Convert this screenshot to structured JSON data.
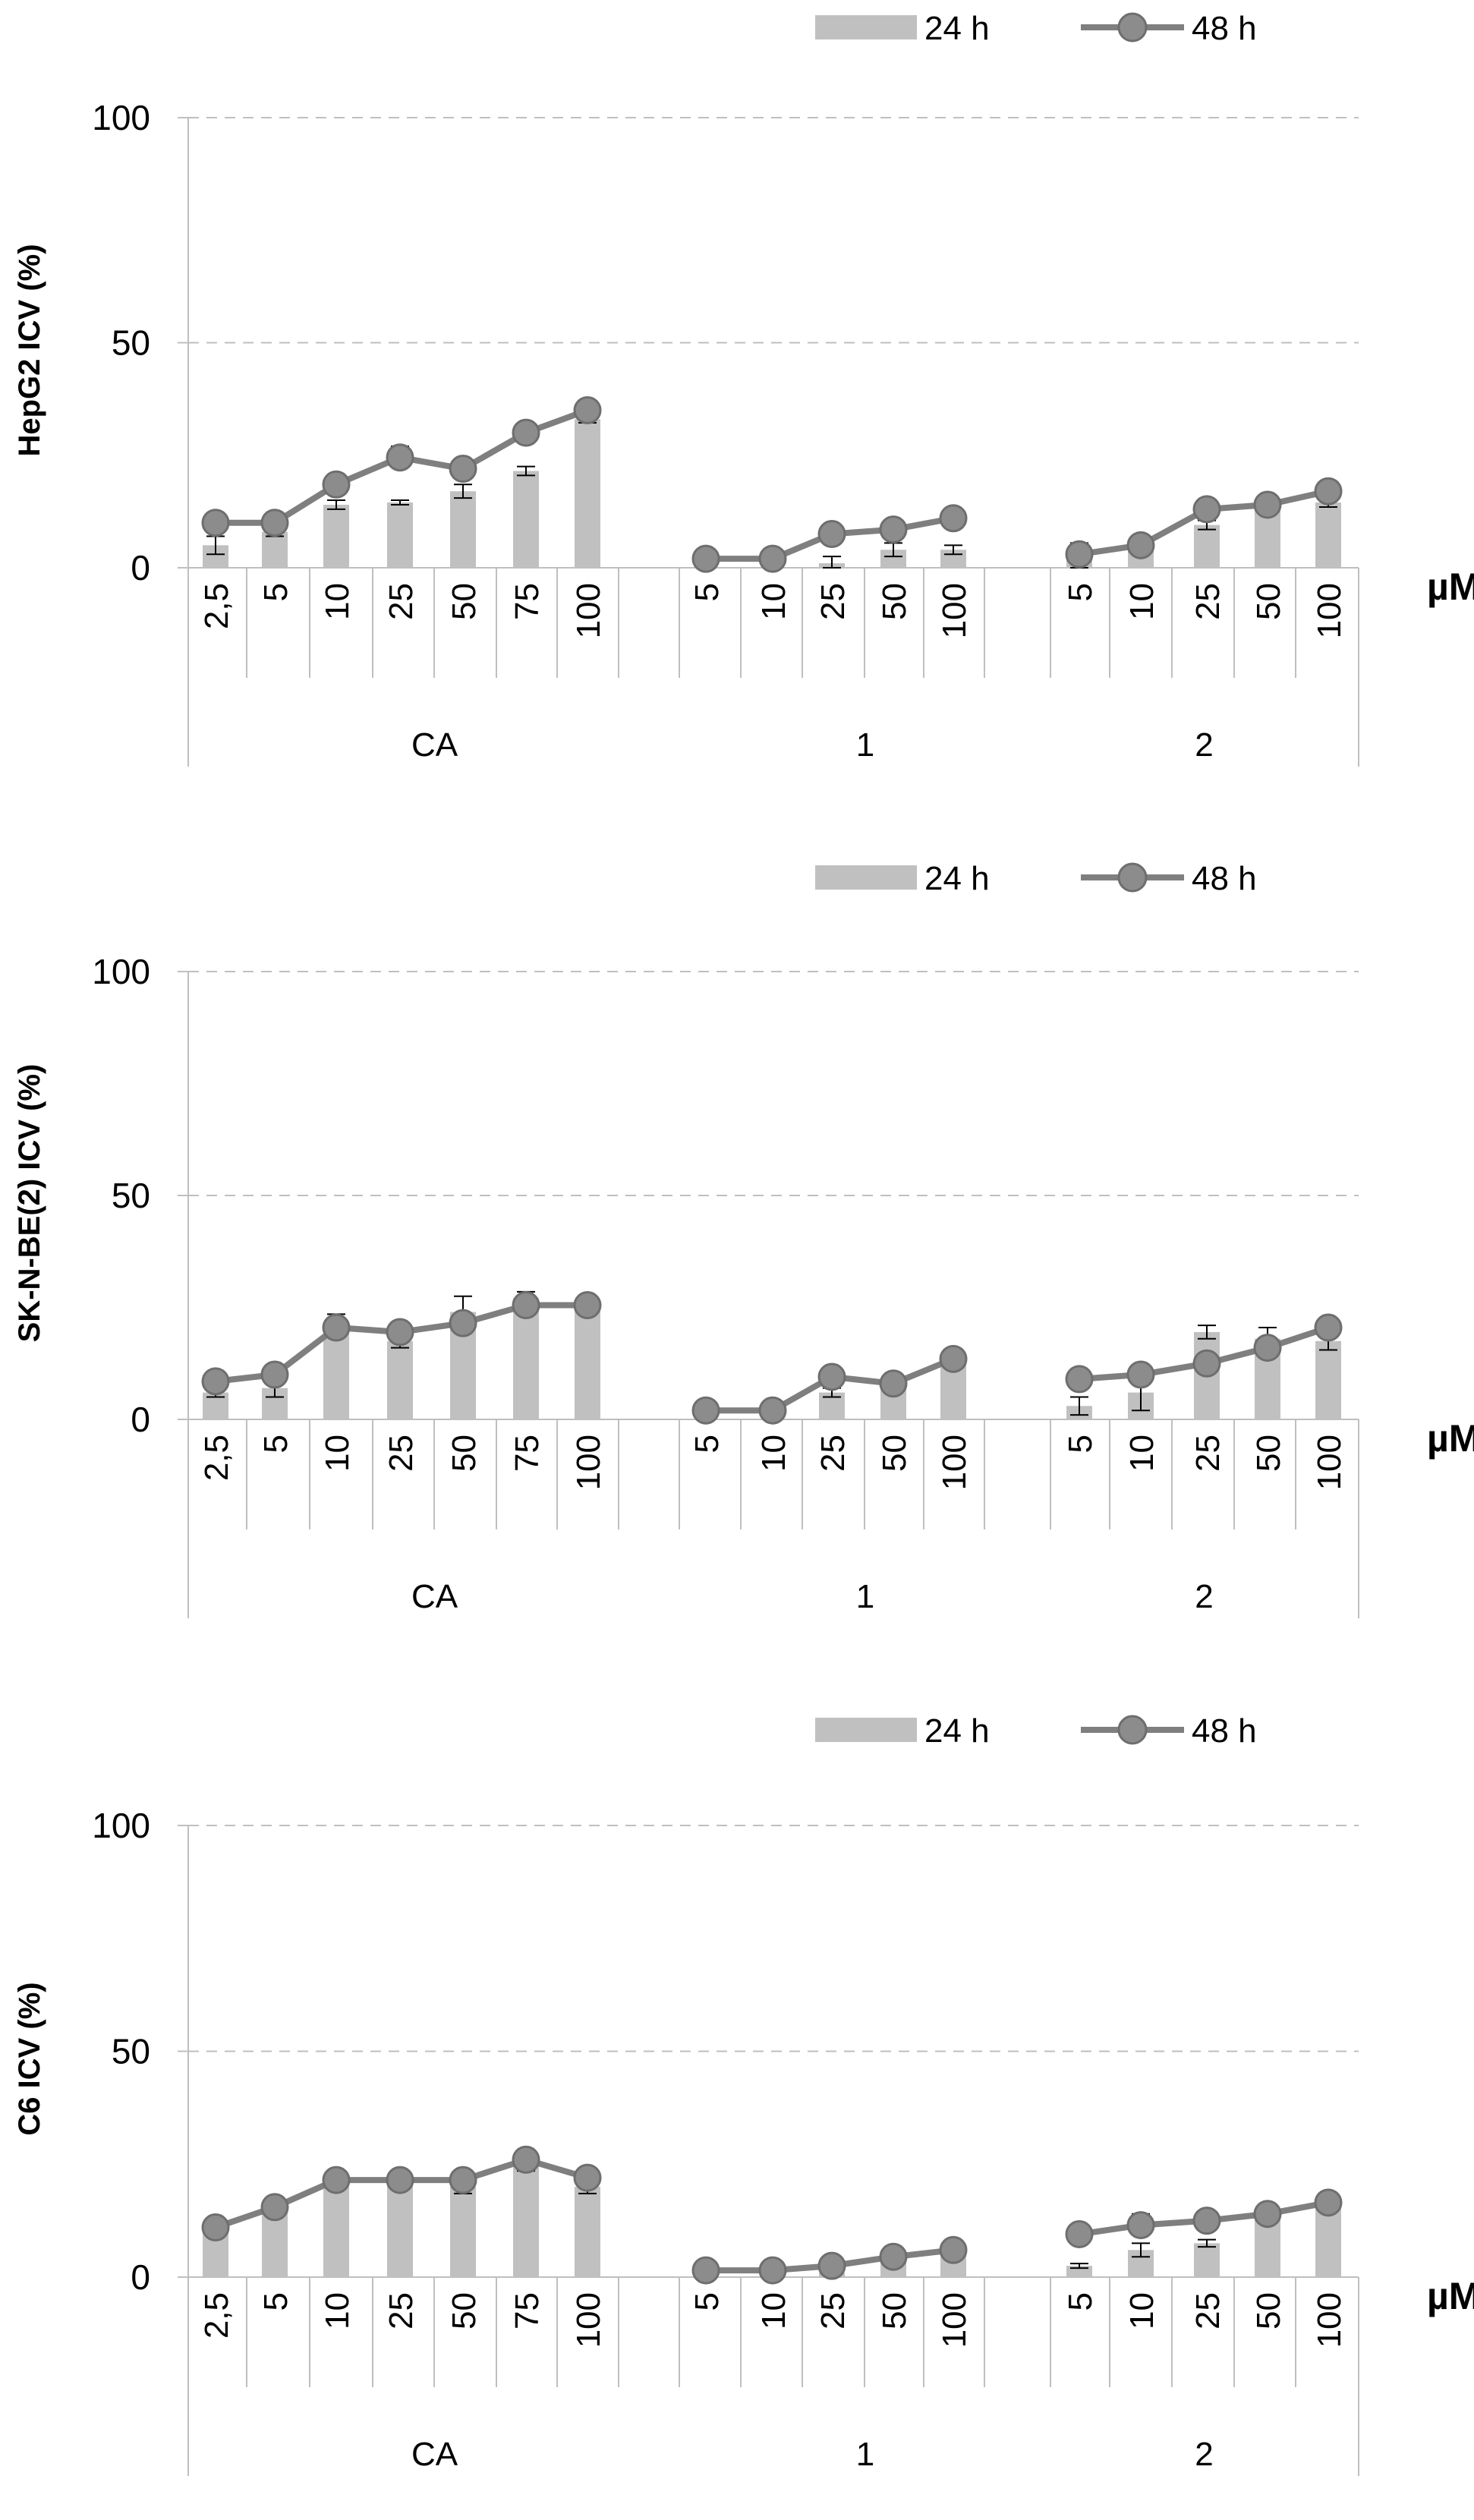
{
  "unit_label": "µM",
  "legend": {
    "bar_label": "24 h",
    "line_label": "48 h"
  },
  "colors": {
    "bar": "#c0c0c0",
    "line": "#7f7f7f",
    "marker_fill": "#8c8c8c",
    "marker_stroke": "#6e6e6e",
    "axis": "#bfbfbf",
    "grid": "#bfbfbf"
  },
  "chart_data": [
    {
      "type": "bar",
      "ylabel": "HepG2 ICV (%)",
      "ylim": [
        0,
        100
      ],
      "yticks": [
        0,
        50,
        100
      ],
      "grid": "dashed horizontal at 50 and 100",
      "legend_position": "top-right",
      "groups": [
        {
          "label": "CA",
          "categories": [
            "2,5",
            "5",
            "10",
            "25",
            "50",
            "75",
            "100"
          ]
        },
        {
          "label": "1",
          "categories": [
            "5",
            "10",
            "25",
            "50",
            "100"
          ]
        },
        {
          "label": "2",
          "categories": [
            "5",
            "10",
            "25",
            "50",
            "100"
          ]
        }
      ],
      "series": [
        {
          "name": "24 h",
          "kind": "bar",
          "values": [
            [
              5,
              8,
              14,
              14.5,
              17,
              21.5,
              33
            ],
            [
              0,
              0,
              1,
              4,
              4
            ],
            [
              2,
              4,
              9.5,
              13,
              14.5
            ]
          ],
          "errors": [
            [
              2,
              1,
              1,
              0.5,
              1.5,
              1,
              0.8
            ],
            [
              0,
              0,
              1.5,
              1.5,
              1
            ],
            [
              2,
              1,
              1,
              0.8,
              1
            ]
          ]
        },
        {
          "name": "48 h",
          "kind": "line",
          "values": [
            [
              10,
              10,
              18.5,
              24.5,
              22,
              30,
              35
            ],
            [
              2,
              2,
              7.5,
              8.5,
              11
            ],
            [
              3,
              5,
              13,
              14,
              17
            ]
          ],
          "errors": [
            [
              0,
              0,
              0,
              2.5,
              0,
              0,
              0
            ],
            [
              0,
              0,
              0,
              0,
              0.8
            ],
            [
              2.5,
              2,
              0,
              0,
              1.5
            ]
          ]
        }
      ]
    },
    {
      "type": "bar",
      "ylabel": "SK-N-BE(2) ICV (%)",
      "ylim": [
        0,
        100
      ],
      "yticks": [
        0,
        50,
        100
      ],
      "grid": "dashed horizontal at 50 and 100",
      "legend_position": "top-right",
      "groups": [
        {
          "label": "CA",
          "categories": [
            "2,5",
            "5",
            "10",
            "25",
            "50",
            "75",
            "100"
          ]
        },
        {
          "label": "1",
          "categories": [
            "5",
            "10",
            "25",
            "50",
            "100"
          ]
        },
        {
          "label": "2",
          "categories": [
            "5",
            "10",
            "25",
            "50",
            "100"
          ]
        }
      ],
      "series": [
        {
          "name": "24 h",
          "kind": "bar",
          "values": [
            [
              6,
              7,
              21,
              17.5,
              24,
              27,
              26
            ],
            [
              0,
              0,
              6,
              7,
              13
            ],
            [
              3,
              6,
              19.5,
              18,
              17.5
            ]
          ],
          "errors": [
            [
              1,
              2,
              2.5,
              1.5,
              3.5,
              1.5,
              1.5
            ],
            [
              0,
              0,
              1,
              1,
              1
            ],
            [
              2,
              4,
              1.5,
              2.5,
              2
            ]
          ]
        },
        {
          "name": "48 h",
          "kind": "line",
          "values": [
            [
              8.5,
              10,
              20.5,
              19.5,
              21.5,
              25.5,
              25.5
            ],
            [
              2,
              2,
              9.5,
              8,
              13.5
            ],
            [
              9,
              10,
              12.5,
              16,
              20.5
            ]
          ],
          "errors": [
            [
              0,
              0,
              0,
              0,
              0,
              0,
              0
            ],
            [
              0,
              0,
              0,
              0,
              0
            ],
            [
              0,
              0,
              0,
              0,
              0
            ]
          ]
        }
      ]
    },
    {
      "type": "bar",
      "ylabel": "C6 ICV (%)",
      "ylim": [
        0,
        100
      ],
      "yticks": [
        0,
        50,
        100
      ],
      "grid": "dashed horizontal at 50 and 100",
      "legend_position": "top-right",
      "groups": [
        {
          "label": "CA",
          "categories": [
            "2,5",
            "5",
            "10",
            "25",
            "50",
            "75",
            "100"
          ]
        },
        {
          "label": "1",
          "categories": [
            "5",
            "10",
            "25",
            "50",
            "100"
          ]
        },
        {
          "label": "2",
          "categories": [
            "5",
            "10",
            "25",
            "50",
            "100"
          ]
        }
      ],
      "series": [
        {
          "name": "24 h",
          "kind": "bar",
          "values": [
            [
              10,
              14.5,
              20.5,
              20.5,
              20,
              25.5,
              20
            ],
            [
              0.5,
              1,
              1,
              4,
              5
            ],
            [
              2.5,
              6,
              7.5,
              13,
              16
            ]
          ],
          "errors": [
            [
              0,
              0,
              0,
              0,
              1.5,
              2,
              1.5
            ],
            [
              0,
              0,
              0,
              0,
              0
            ],
            [
              0.5,
              1.5,
              0.8,
              0,
              0
            ]
          ]
        },
        {
          "name": "48 h",
          "kind": "line",
          "values": [
            [
              11,
              15.5,
              21.5,
              21.5,
              21.5,
              26,
              22
            ],
            [
              1.5,
              1.5,
              2.5,
              4.5,
              6
            ],
            [
              9.5,
              11.5,
              12.5,
              14,
              16.5
            ]
          ],
          "errors": [
            [
              0,
              0,
              0,
              0,
              0,
              0,
              0
            ],
            [
              0,
              0,
              0,
              0,
              0
            ],
            [
              0,
              2.5,
              0,
              0,
              0
            ]
          ]
        }
      ]
    }
  ]
}
